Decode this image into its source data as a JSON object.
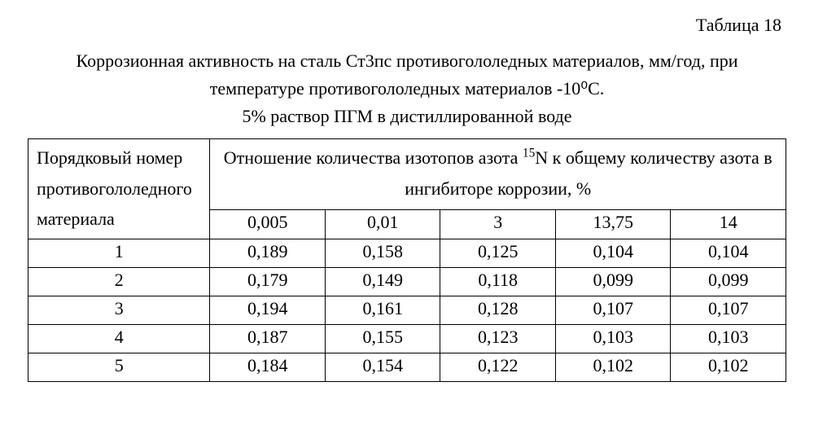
{
  "table_label": "Таблица 18",
  "caption_lines": [
    "Коррозионная активность на сталь Ст3пс противогололедных материалов, мм/год, при",
    "температуре противогололедных материалов -10⁰С.",
    "5% раствор ПГМ в дистиллированной воде"
  ],
  "table": {
    "type": "table",
    "row_header_label": "Порядковый номер противогололедного материала",
    "span_header_html": "Отношение количества изотопов азота <sup>15</sup>N  к общему количеству азота в ингибиторе коррозии, %",
    "column_values": [
      "0,005",
      "0,01",
      "3",
      "13,75",
      "14"
    ],
    "rows": [
      {
        "num": "1",
        "cells": [
          "0,189",
          "0,158",
          "0,125",
          "0,104",
          "0,104"
        ]
      },
      {
        "num": "2",
        "cells": [
          "0,179",
          "0,149",
          "0,118",
          "0,099",
          "0,099"
        ]
      },
      {
        "num": "3",
        "cells": [
          "0,194",
          "0,161",
          "0,128",
          "0,107",
          "0,107"
        ]
      },
      {
        "num": "4",
        "cells": [
          "0,187",
          "0,155",
          "0,123",
          "0,103",
          "0,103"
        ]
      },
      {
        "num": "5",
        "cells": [
          "0,184",
          "0,154",
          "0,122",
          "0,102",
          "0,102"
        ]
      }
    ],
    "border_color": "#000000",
    "background_color": "#ffffff",
    "font_family": "Times New Roman",
    "base_fontsize_pt": 16,
    "column_widths_pct": [
      24,
      15.2,
      15.2,
      15.2,
      15.2,
      15.2
    ]
  }
}
